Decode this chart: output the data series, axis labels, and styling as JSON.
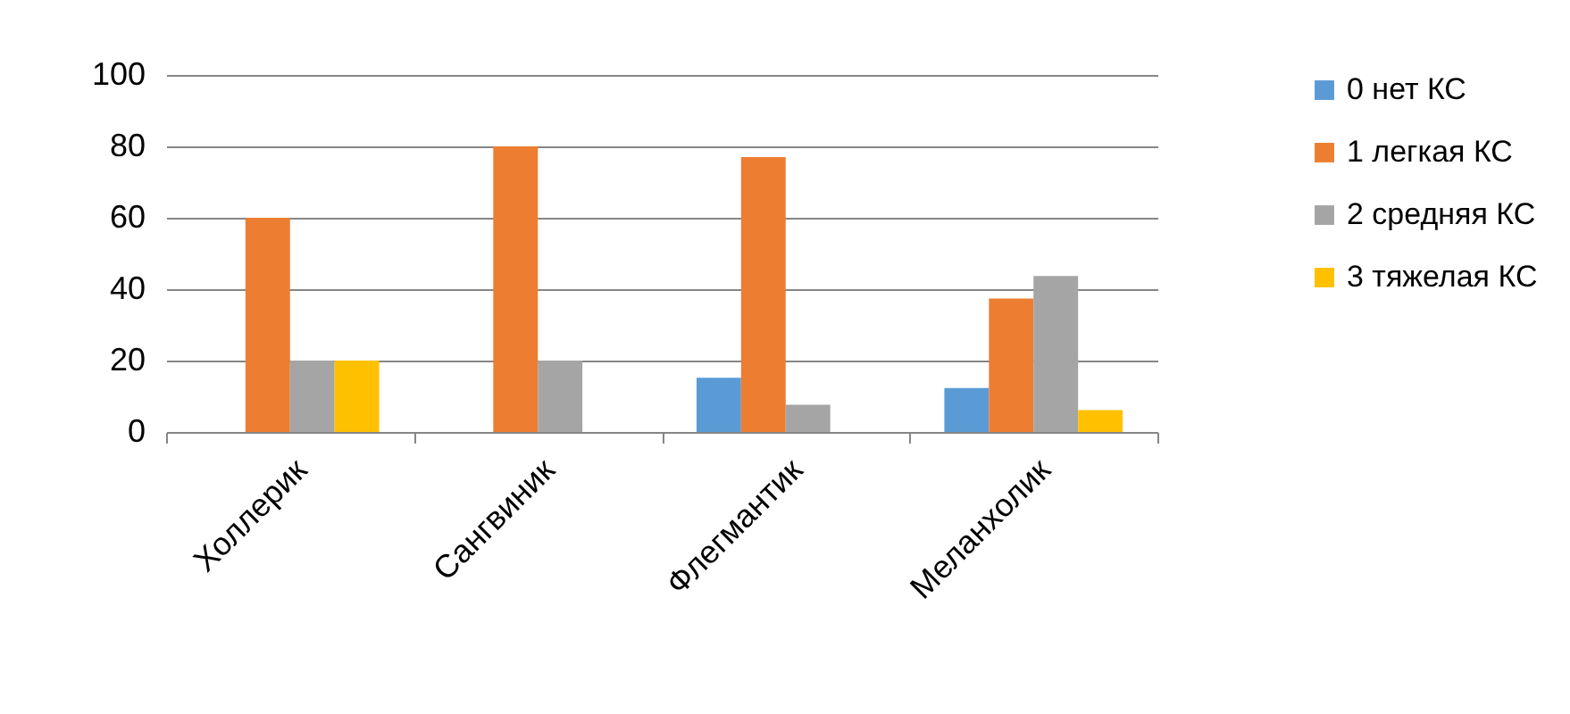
{
  "chart_data": {
    "type": "bar",
    "categories": [
      "Холлерик",
      "Сангвиник",
      "Флегмантик",
      "Меланхолик"
    ],
    "series": [
      {
        "name": "0 нет КС",
        "color": "#5b9bd5",
        "values": [
          0,
          0,
          15.2,
          12.3
        ]
      },
      {
        "name": "1 легкая КС",
        "color": "#ed7d31",
        "values": [
          60,
          80,
          77,
          37.4
        ]
      },
      {
        "name": "2 средняя КС",
        "color": "#a5a5a5",
        "values": [
          20,
          20,
          7.6,
          43.7
        ]
      },
      {
        "name": "3 тяжелая КС",
        "color": "#ffc000",
        "values": [
          20,
          0,
          0,
          6.1
        ]
      }
    ],
    "ylim": [
      0,
      100
    ],
    "yticks": [
      0,
      20,
      40,
      60,
      80,
      100
    ],
    "grid": "y",
    "legend": "right"
  }
}
